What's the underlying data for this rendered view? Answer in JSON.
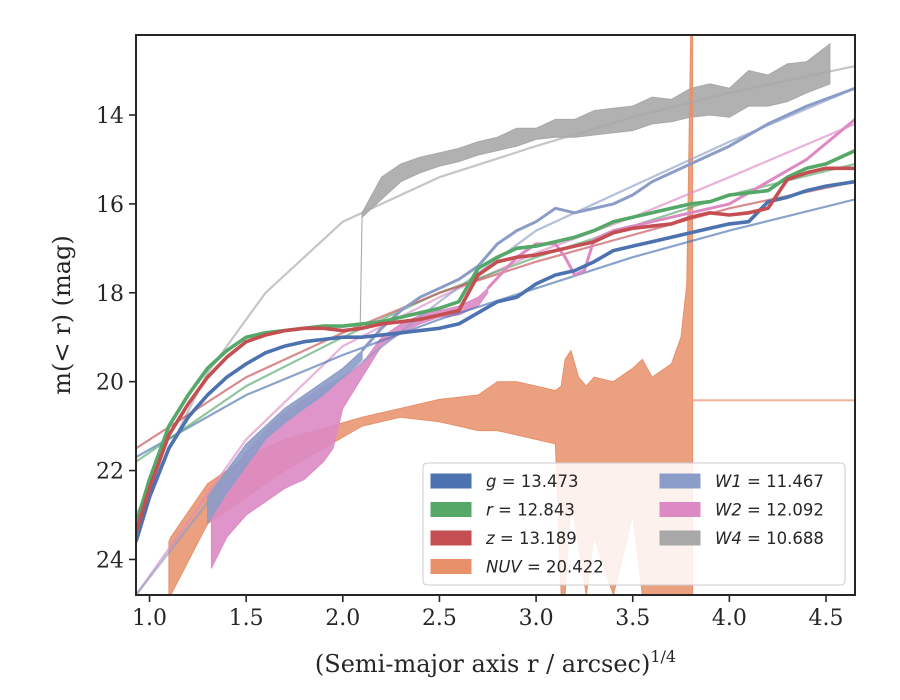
{
  "chart_data": {
    "type": "line",
    "xlabel": "(Semi-major axis r / arcsec)",
    "xlabel_exponent": "1/4",
    "ylabel": "m(< r) (mag)",
    "xlim": [
      0.93,
      4.65
    ],
    "ylim": [
      24.8,
      12.2
    ],
    "y_inverted": true,
    "x_ticks": [
      "1.0",
      "1.5",
      "2.0",
      "2.5",
      "3.0",
      "3.5",
      "4.0",
      "4.5"
    ],
    "y_ticks": [
      "14",
      "16",
      "18",
      "20",
      "22",
      "24"
    ],
    "grid": false,
    "legend_position": "lower-right",
    "legend": [
      {
        "band": "g",
        "value": "13.473",
        "color": "#4c72b0"
      },
      {
        "band": "r",
        "value": "12.843",
        "color": "#55a868"
      },
      {
        "band": "z",
        "value": "13.189",
        "color": "#c44e52"
      },
      {
        "band": "NUV",
        "value": "20.422",
        "color": "#e8906a"
      },
      {
        "band": "W1",
        "value": "11.467",
        "color": "#8c9cc8"
      },
      {
        "band": "W2",
        "value": "12.092",
        "color": "#dd8ac4"
      },
      {
        "band": "W4",
        "value": "10.688",
        "color": "#a8a8a8"
      }
    ],
    "series": [
      {
        "name": "W4",
        "color": "#a8a8a8",
        "band_x": [
          2.09,
          2.1,
          2.2,
          2.3,
          2.4,
          2.5,
          2.6,
          2.7,
          2.8,
          2.9,
          3.0,
          3.1,
          3.2,
          3.3,
          3.4,
          3.5,
          3.6,
          3.7,
          3.8,
          3.9,
          4.0,
          4.1,
          4.2,
          4.3,
          4.4,
          4.52
        ],
        "band_lo": [
          18.8,
          16.3,
          15.9,
          15.5,
          15.3,
          15.15,
          15.05,
          14.9,
          14.8,
          14.7,
          14.55,
          14.5,
          14.5,
          14.45,
          14.4,
          14.35,
          14.2,
          14.15,
          14.05,
          14.0,
          14.05,
          13.8,
          13.8,
          13.7,
          13.5,
          13.3
        ],
        "band_hi": [
          18.7,
          16.2,
          15.4,
          15.1,
          14.95,
          14.85,
          14.75,
          14.6,
          14.5,
          14.3,
          14.3,
          14.1,
          14.1,
          13.9,
          13.85,
          13.8,
          13.6,
          13.65,
          13.4,
          13.3,
          13.4,
          13.0,
          13.1,
          12.85,
          12.8,
          12.4
        ],
        "model_x": [
          0.93,
          1.3,
          1.6,
          2.0,
          2.5,
          3.0,
          3.5,
          4.0,
          4.65
        ],
        "model_y": [
          23.0,
          19.8,
          18.0,
          16.4,
          15.4,
          14.7,
          14.05,
          13.5,
          12.9
        ]
      },
      {
        "name": "NUV",
        "color": "#e8906a",
        "band_x": [
          1.1,
          1.11,
          1.3,
          1.5,
          1.7,
          1.9,
          2.1,
          2.3,
          2.5,
          2.6,
          2.7,
          2.8,
          2.9,
          3.0,
          3.1,
          3.13,
          3.15,
          3.18,
          3.22,
          3.26,
          3.3,
          3.4,
          3.5,
          3.55,
          3.6,
          3.7,
          3.75,
          3.78,
          3.8,
          3.81
        ],
        "band_hi": [
          23.6,
          23.5,
          22.3,
          21.7,
          21.3,
          21.05,
          20.8,
          20.6,
          20.4,
          20.35,
          20.3,
          20.0,
          20.0,
          20.1,
          20.2,
          20.1,
          19.5,
          19.3,
          19.9,
          20.1,
          19.9,
          20.0,
          19.7,
          19.5,
          19.9,
          19.6,
          19.0,
          17.8,
          12.2,
          12.2
        ],
        "band_lo": [
          24.8,
          24.8,
          23.2,
          22.6,
          22.0,
          21.5,
          21.0,
          20.8,
          20.9,
          21.0,
          21.1,
          21.1,
          21.2,
          21.3,
          21.4,
          24.8,
          24.8,
          22.6,
          23.7,
          24.8,
          23.5,
          24.8,
          23.0,
          24.8,
          24.8,
          24.8,
          24.8,
          24.8,
          24.8,
          24.8
        ],
        "flat_x": [
          3.81,
          4.65
        ],
        "flat_y": [
          20.42,
          20.42
        ]
      },
      {
        "name": "W2",
        "color": "#dd8ac4",
        "band_x": [
          1.32,
          1.4,
          1.5,
          1.6,
          1.7,
          1.8,
          1.9,
          1.95,
          2.0,
          2.1,
          2.2,
          2.3,
          2.4,
          2.5,
          2.6,
          2.7,
          2.75
        ],
        "band_hi": [
          22.9,
          22.2,
          21.6,
          21.1,
          20.7,
          20.4,
          20.1,
          20.0,
          19.9,
          19.6,
          19.0,
          18.7,
          18.5,
          18.4,
          18.3,
          18.1,
          17.9
        ],
        "band_lo": [
          24.2,
          23.5,
          23.0,
          22.7,
          22.4,
          22.2,
          21.8,
          21.5,
          20.6,
          19.9,
          19.2,
          18.9,
          18.7,
          18.55,
          18.5,
          18.3,
          18.0
        ],
        "line_x": [
          2.75,
          2.9,
          3.0,
          3.1,
          3.15,
          3.2,
          3.25,
          3.3,
          3.4,
          3.6,
          3.8,
          4.0,
          4.2,
          4.4,
          4.65
        ],
        "line_y": [
          17.9,
          17.2,
          16.9,
          16.9,
          17.2,
          17.6,
          17.5,
          16.8,
          16.6,
          16.4,
          16.2,
          16.0,
          15.5,
          15.0,
          14.1
        ],
        "model_x": [
          0.93,
          1.5,
          2.0,
          2.5,
          3.0,
          3.5,
          4.0,
          4.65
        ],
        "model_y": [
          24.8,
          21.3,
          19.2,
          18.1,
          17.1,
          16.3,
          15.4,
          14.2
        ]
      },
      {
        "name": "W1",
        "color": "#8c9cc8",
        "band_x": [
          1.3,
          1.4,
          1.5,
          1.6,
          1.7,
          1.8,
          1.9,
          2.0,
          2.1
        ],
        "band_hi": [
          22.6,
          22.0,
          21.4,
          21.0,
          20.6,
          20.3,
          20.0,
          19.7,
          19.3
        ],
        "band_lo": [
          23.2,
          22.5,
          21.9,
          21.3,
          20.9,
          20.6,
          20.3,
          19.9,
          19.5
        ],
        "line_x": [
          2.1,
          2.2,
          2.3,
          2.4,
          2.5,
          2.6,
          2.7,
          2.8,
          2.9,
          3.0,
          3.1,
          3.2,
          3.3,
          3.4,
          3.5,
          3.6,
          3.7,
          3.8,
          3.9,
          4.0,
          4.2,
          4.4,
          4.65
        ],
        "line_y": [
          19.3,
          18.8,
          18.4,
          18.1,
          17.9,
          17.7,
          17.4,
          16.9,
          16.6,
          16.4,
          16.1,
          16.2,
          16.1,
          16.0,
          15.8,
          15.5,
          15.3,
          15.1,
          14.9,
          14.7,
          14.2,
          13.8,
          13.4
        ],
        "model_x": [
          0.93,
          1.5,
          2.0,
          2.5,
          3.0,
          3.5,
          4.0,
          4.65
        ],
        "model_y": [
          24.8,
          21.6,
          19.9,
          18.2,
          16.6,
          15.6,
          14.6,
          13.4
        ]
      },
      {
        "name": "g",
        "color": "#4c72b0",
        "x": [
          0.93,
          1.0,
          1.1,
          1.2,
          1.3,
          1.4,
          1.5,
          1.6,
          1.7,
          1.8,
          1.9,
          2.0,
          2.1,
          2.2,
          2.3,
          2.4,
          2.5,
          2.6,
          2.7,
          2.8,
          2.9,
          3.0,
          3.1,
          3.2,
          3.3,
          3.4,
          3.5,
          3.6,
          3.7,
          3.8,
          3.9,
          4.0,
          4.1,
          4.2,
          4.3,
          4.4,
          4.5,
          4.65
        ],
        "y": [
          23.6,
          22.6,
          21.5,
          20.8,
          20.3,
          19.9,
          19.6,
          19.35,
          19.2,
          19.1,
          19.05,
          19.0,
          19.0,
          18.95,
          18.9,
          18.85,
          18.8,
          18.7,
          18.45,
          18.2,
          18.1,
          17.8,
          17.6,
          17.5,
          17.3,
          17.05,
          16.95,
          16.85,
          16.75,
          16.65,
          16.55,
          16.45,
          16.4,
          15.95,
          15.85,
          15.7,
          15.6,
          15.5
        ],
        "model_x": [
          0.93,
          1.5,
          2.0,
          2.5,
          3.0,
          3.5,
          4.0,
          4.65
        ],
        "model_y": [
          21.7,
          20.3,
          19.4,
          18.6,
          17.9,
          17.2,
          16.6,
          15.9
        ]
      },
      {
        "name": "r",
        "color": "#55a868",
        "x": [
          0.93,
          1.0,
          1.1,
          1.2,
          1.3,
          1.4,
          1.5,
          1.6,
          1.7,
          1.8,
          1.9,
          2.0,
          2.1,
          2.2,
          2.3,
          2.4,
          2.5,
          2.6,
          2.7,
          2.8,
          2.9,
          3.0,
          3.1,
          3.2,
          3.3,
          3.4,
          3.5,
          3.6,
          3.7,
          3.8,
          3.9,
          4.0,
          4.1,
          4.2,
          4.3,
          4.4,
          4.5,
          4.65
        ],
        "y": [
          23.2,
          22.2,
          21.0,
          20.3,
          19.7,
          19.3,
          19.0,
          18.9,
          18.85,
          18.8,
          18.75,
          18.75,
          18.7,
          18.65,
          18.55,
          18.45,
          18.35,
          18.2,
          17.45,
          17.2,
          17.0,
          16.95,
          16.85,
          16.75,
          16.6,
          16.4,
          16.3,
          16.2,
          16.1,
          16.0,
          15.95,
          15.8,
          15.75,
          15.7,
          15.4,
          15.2,
          15.1,
          14.8
        ],
        "model_x": [
          0.93,
          1.5,
          2.0,
          2.5,
          3.0,
          3.5,
          4.0,
          4.65
        ],
        "model_y": [
          21.8,
          20.1,
          19.0,
          18.0,
          17.2,
          16.5,
          15.8,
          15.1
        ]
      },
      {
        "name": "z",
        "color": "#c44e52",
        "x": [
          0.93,
          1.0,
          1.1,
          1.2,
          1.3,
          1.4,
          1.5,
          1.6,
          1.7,
          1.8,
          1.9,
          2.0,
          2.1,
          2.2,
          2.3,
          2.4,
          2.5,
          2.6,
          2.7,
          2.8,
          2.9,
          3.0,
          3.1,
          3.2,
          3.3,
          3.4,
          3.5,
          3.6,
          3.7,
          3.8,
          3.9,
          4.0,
          4.1,
          4.2,
          4.3,
          4.4,
          4.5,
          4.65
        ],
        "y": [
          23.4,
          22.4,
          21.2,
          20.5,
          19.9,
          19.45,
          19.1,
          18.95,
          18.85,
          18.8,
          18.8,
          18.85,
          18.8,
          18.7,
          18.65,
          18.6,
          18.5,
          18.4,
          17.6,
          17.3,
          17.2,
          17.15,
          17.05,
          16.95,
          16.85,
          16.65,
          16.55,
          16.5,
          16.45,
          16.3,
          16.2,
          16.25,
          16.2,
          16.1,
          15.45,
          15.3,
          15.2,
          15.2
        ],
        "model_x": [
          0.93,
          1.5,
          2.0,
          2.5,
          3.0,
          3.5,
          4.0,
          4.65
        ],
        "model_y": [
          21.5,
          19.9,
          18.9,
          18.0,
          17.3,
          16.7,
          16.1,
          15.5
        ]
      }
    ]
  }
}
